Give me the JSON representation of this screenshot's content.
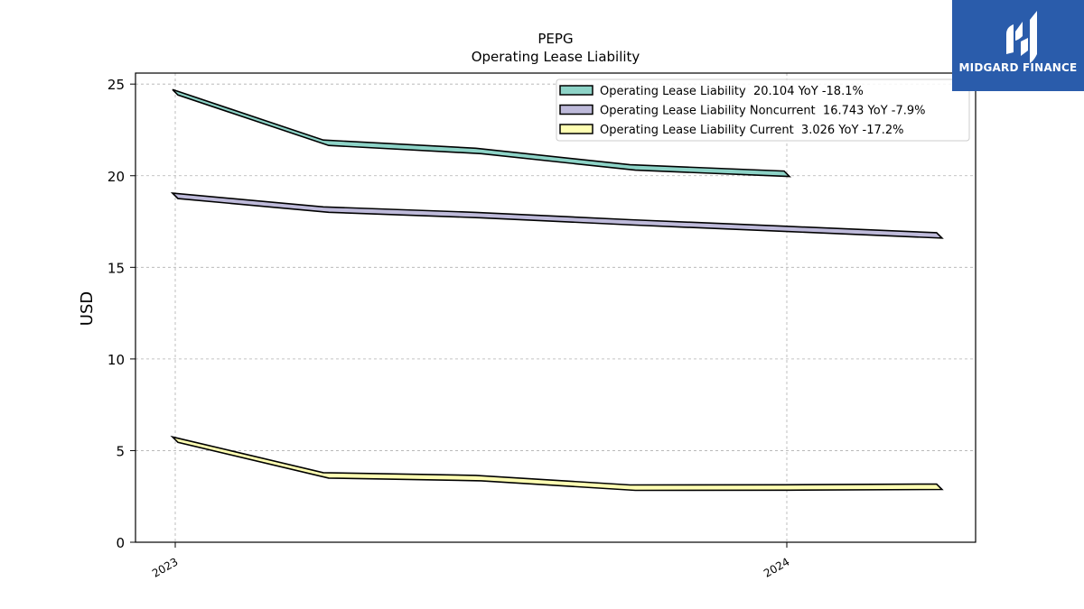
{
  "chart_data": {
    "type": "line",
    "title": "PEPG",
    "subtitle": "Operating Lease Liability",
    "xlabel": "",
    "ylabel": "USD",
    "ylim": [
      0,
      25.6
    ],
    "yticks": [
      0,
      5,
      10,
      15,
      20,
      25
    ],
    "xticks": [
      {
        "label": "2023",
        "x": "2023-01-01"
      },
      {
        "label": "2024",
        "x": "2024-01-01"
      }
    ],
    "grid": true,
    "legend_position": "top-right",
    "series": [
      {
        "name": "Operating Lease Liability  20.104 YoY -18.1%",
        "color": "#8dd3c7",
        "x": [
          "2023-01-01",
          "2023-04-01",
          "2023-07-01",
          "2023-10-01",
          "2024-01-01"
        ],
        "y": [
          24.55,
          21.8,
          21.35,
          20.45,
          20.104
        ]
      },
      {
        "name": "Operating Lease Liability Noncurrent  16.743 YoY -7.9%",
        "color": "#bebada",
        "x": [
          "2023-01-01",
          "2023-04-01",
          "2023-07-01",
          "2023-10-01",
          "2024-01-01",
          "2024-04-01"
        ],
        "y": [
          18.9,
          18.15,
          17.85,
          17.45,
          17.1,
          16.743
        ]
      },
      {
        "name": "Operating Lease Liability Current  3.026 YoY -17.2%",
        "color": "#ffffb3",
        "x": [
          "2023-01-01",
          "2023-04-01",
          "2023-07-01",
          "2023-10-01",
          "2024-01-01",
          "2024-04-01"
        ],
        "y": [
          5.6,
          3.65,
          3.5,
          2.98,
          2.99,
          3.026
        ]
      }
    ]
  },
  "logo": {
    "text": "MIDGARD FINANCE",
    "background": "#2a5cab"
  }
}
